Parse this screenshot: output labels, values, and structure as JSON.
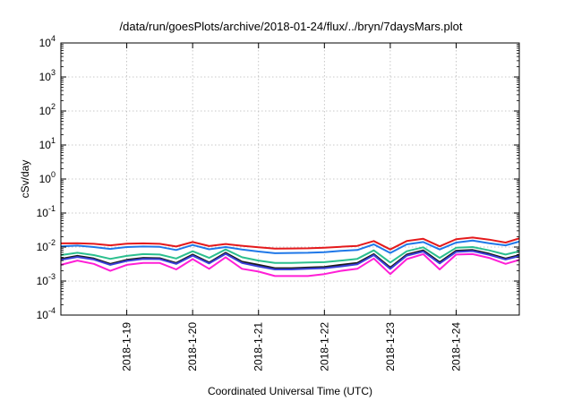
{
  "chart_data": {
    "type": "line",
    "title": "/data/run/goesPlots/archive/2018-01-24/flux/../bryn/7daysMars.plot",
    "xlabel": "Coordinated Universal Time (UTC)",
    "ylabel": "cSv/day",
    "x_range": [
      "2018-01-18T00:00",
      "2018-01-24T23:00"
    ],
    "x_ticks": [
      "2018-1-19",
      "2018-1-20",
      "2018-1-21",
      "2018-1-22",
      "2018-1-23",
      "2018-1-24"
    ],
    "y_scale": "log",
    "ylim": [
      0.0001,
      10000
    ],
    "y_ticks": [
      {
        "base": "10",
        "exp": "-4"
      },
      {
        "base": "10",
        "exp": "-3"
      },
      {
        "base": "10",
        "exp": "-2"
      },
      {
        "base": "10",
        "exp": "-1"
      },
      {
        "base": "10",
        "exp": "0"
      },
      {
        "base": "10",
        "exp": "1"
      },
      {
        "base": "10",
        "exp": "2"
      },
      {
        "base": "10",
        "exp": "3"
      },
      {
        "base": "10",
        "exp": "4"
      }
    ],
    "grid": true,
    "series": [
      {
        "color": "#e41a1c",
        "points": [
          [
            "2018-01-18T00:00",
            0.0128
          ],
          [
            "2018-01-18T06:00",
            0.013
          ],
          [
            "2018-01-18T12:00",
            0.0124
          ],
          [
            "2018-01-18T18:00",
            0.0112
          ],
          [
            "2018-01-19T00:00",
            0.0125
          ],
          [
            "2018-01-19T06:00",
            0.0128
          ],
          [
            "2018-01-19T12:00",
            0.0124
          ],
          [
            "2018-01-19T18:00",
            0.0104
          ],
          [
            "2018-01-20T00:00",
            0.014
          ],
          [
            "2018-01-20T06:00",
            0.0107
          ],
          [
            "2018-01-20T12:00",
            0.0123
          ],
          [
            "2018-01-20T18:00",
            0.0109
          ],
          [
            "2018-01-21T00:00",
            0.0098
          ],
          [
            "2018-01-21T06:00",
            0.009
          ],
          [
            "2018-01-21T12:00",
            0.0091
          ],
          [
            "2018-01-21T18:00",
            0.0092
          ],
          [
            "2018-01-22T00:00",
            0.0096
          ],
          [
            "2018-01-22T06:00",
            0.0102
          ],
          [
            "2018-01-22T12:00",
            0.0108
          ],
          [
            "2018-01-22T18:00",
            0.015
          ],
          [
            "2018-01-23T00:00",
            0.0085
          ],
          [
            "2018-01-23T06:00",
            0.015
          ],
          [
            "2018-01-23T12:00",
            0.0175
          ],
          [
            "2018-01-23T18:00",
            0.0105
          ],
          [
            "2018-01-24T00:00",
            0.017
          ],
          [
            "2018-01-24T06:00",
            0.019
          ],
          [
            "2018-01-24T12:00",
            0.0165
          ],
          [
            "2018-01-24T18:00",
            0.0135
          ],
          [
            "2018-01-24T23:00",
            0.018
          ]
        ]
      },
      {
        "color": "#1f78e8",
        "points": [
          [
            "2018-01-18T00:00",
            0.0105
          ],
          [
            "2018-01-18T06:00",
            0.011
          ],
          [
            "2018-01-18T12:00",
            0.01
          ],
          [
            "2018-01-18T18:00",
            0.0088
          ],
          [
            "2018-01-19T00:00",
            0.01
          ],
          [
            "2018-01-19T06:00",
            0.0104
          ],
          [
            "2018-01-19T12:00",
            0.0101
          ],
          [
            "2018-01-19T18:00",
            0.0082
          ],
          [
            "2018-01-20T00:00",
            0.0115
          ],
          [
            "2018-01-20T06:00",
            0.0086
          ],
          [
            "2018-01-20T12:00",
            0.01
          ],
          [
            "2018-01-20T18:00",
            0.0085
          ],
          [
            "2018-01-21T00:00",
            0.0074
          ],
          [
            "2018-01-21T06:00",
            0.0066
          ],
          [
            "2018-01-21T12:00",
            0.0067
          ],
          [
            "2018-01-21T18:00",
            0.0068
          ],
          [
            "2018-01-22T00:00",
            0.0071
          ],
          [
            "2018-01-22T06:00",
            0.0077
          ],
          [
            "2018-01-22T12:00",
            0.0082
          ],
          [
            "2018-01-22T18:00",
            0.012
          ],
          [
            "2018-01-23T00:00",
            0.0067
          ],
          [
            "2018-01-23T06:00",
            0.012
          ],
          [
            "2018-01-23T12:00",
            0.014
          ],
          [
            "2018-01-23T18:00",
            0.0085
          ],
          [
            "2018-01-24T00:00",
            0.0135
          ],
          [
            "2018-01-24T06:00",
            0.0155
          ],
          [
            "2018-01-24T12:00",
            0.013
          ],
          [
            "2018-01-24T18:00",
            0.0112
          ],
          [
            "2018-01-24T23:00",
            0.0145
          ]
        ]
      },
      {
        "color": "#2bbf8e",
        "points": [
          [
            "2018-01-18T00:00",
            0.0058
          ],
          [
            "2018-01-18T06:00",
            0.0068
          ],
          [
            "2018-01-18T12:00",
            0.0058
          ],
          [
            "2018-01-18T18:00",
            0.0045
          ],
          [
            "2018-01-19T00:00",
            0.0055
          ],
          [
            "2018-01-19T06:00",
            0.0062
          ],
          [
            "2018-01-19T12:00",
            0.006
          ],
          [
            "2018-01-19T18:00",
            0.0046
          ],
          [
            "2018-01-20T00:00",
            0.0075
          ],
          [
            "2018-01-20T06:00",
            0.0048
          ],
          [
            "2018-01-20T12:00",
            0.0085
          ],
          [
            "2018-01-20T18:00",
            0.005
          ],
          [
            "2018-01-21T00:00",
            0.004
          ],
          [
            "2018-01-21T06:00",
            0.0034
          ],
          [
            "2018-01-21T12:00",
            0.0034
          ],
          [
            "2018-01-21T18:00",
            0.0035
          ],
          [
            "2018-01-22T00:00",
            0.0036
          ],
          [
            "2018-01-22T06:00",
            0.004
          ],
          [
            "2018-01-22T12:00",
            0.0045
          ],
          [
            "2018-01-22T18:00",
            0.008
          ],
          [
            "2018-01-23T00:00",
            0.0035
          ],
          [
            "2018-01-23T06:00",
            0.0075
          ],
          [
            "2018-01-23T12:00",
            0.0098
          ],
          [
            "2018-01-23T18:00",
            0.0048
          ],
          [
            "2018-01-24T00:00",
            0.0095
          ],
          [
            "2018-01-24T06:00",
            0.01
          ],
          [
            "2018-01-24T12:00",
            0.008
          ],
          [
            "2018-01-24T18:00",
            0.006
          ],
          [
            "2018-01-24T23:00",
            0.0075
          ]
        ]
      },
      {
        "color": "#1a1a1a",
        "points": [
          [
            "2018-01-18T00:00",
            0.0045
          ],
          [
            "2018-01-18T06:00",
            0.0055
          ],
          [
            "2018-01-18T12:00",
            0.0046
          ],
          [
            "2018-01-18T18:00",
            0.0032
          ],
          [
            "2018-01-19T00:00",
            0.0042
          ],
          [
            "2018-01-19T06:00",
            0.0048
          ],
          [
            "2018-01-19T12:00",
            0.0047
          ],
          [
            "2018-01-19T18:00",
            0.0034
          ],
          [
            "2018-01-20T00:00",
            0.006
          ],
          [
            "2018-01-20T06:00",
            0.0035
          ],
          [
            "2018-01-20T12:00",
            0.0068
          ],
          [
            "2018-01-20T18:00",
            0.0037
          ],
          [
            "2018-01-21T00:00",
            0.003
          ],
          [
            "2018-01-21T06:00",
            0.0024
          ],
          [
            "2018-01-21T12:00",
            0.0024
          ],
          [
            "2018-01-21T18:00",
            0.0025
          ],
          [
            "2018-01-22T00:00",
            0.0026
          ],
          [
            "2018-01-22T06:00",
            0.003
          ],
          [
            "2018-01-22T12:00",
            0.0034
          ],
          [
            "2018-01-22T18:00",
            0.0062
          ],
          [
            "2018-01-23T00:00",
            0.0025
          ],
          [
            "2018-01-23T06:00",
            0.006
          ],
          [
            "2018-01-23T12:00",
            0.008
          ],
          [
            "2018-01-23T18:00",
            0.0036
          ],
          [
            "2018-01-24T00:00",
            0.0078
          ],
          [
            "2018-01-24T06:00",
            0.0082
          ],
          [
            "2018-01-24T12:00",
            0.0064
          ],
          [
            "2018-01-24T18:00",
            0.0046
          ],
          [
            "2018-01-24T23:00",
            0.0058
          ]
        ]
      },
      {
        "color": "#3b3fd8",
        "points": [
          [
            "2018-01-18T00:00",
            0.0042
          ],
          [
            "2018-01-18T06:00",
            0.0051
          ],
          [
            "2018-01-18T12:00",
            0.0043
          ],
          [
            "2018-01-18T18:00",
            0.003
          ],
          [
            "2018-01-19T00:00",
            0.0039
          ],
          [
            "2018-01-19T06:00",
            0.0045
          ],
          [
            "2018-01-19T12:00",
            0.0044
          ],
          [
            "2018-01-19T18:00",
            0.0032
          ],
          [
            "2018-01-20T00:00",
            0.0056
          ],
          [
            "2018-01-20T06:00",
            0.0033
          ],
          [
            "2018-01-20T12:00",
            0.0063
          ],
          [
            "2018-01-20T18:00",
            0.0034
          ],
          [
            "2018-01-21T00:00",
            0.0027
          ],
          [
            "2018-01-21T06:00",
            0.0022
          ],
          [
            "2018-01-21T12:00",
            0.0022
          ],
          [
            "2018-01-21T18:00",
            0.0023
          ],
          [
            "2018-01-22T00:00",
            0.0024
          ],
          [
            "2018-01-22T06:00",
            0.0027
          ],
          [
            "2018-01-22T12:00",
            0.0031
          ],
          [
            "2018-01-22T18:00",
            0.0058
          ],
          [
            "2018-01-23T00:00",
            0.0023
          ],
          [
            "2018-01-23T06:00",
            0.0056
          ],
          [
            "2018-01-23T12:00",
            0.0074
          ],
          [
            "2018-01-23T18:00",
            0.0033
          ],
          [
            "2018-01-24T00:00",
            0.0072
          ],
          [
            "2018-01-24T06:00",
            0.0076
          ],
          [
            "2018-01-24T12:00",
            0.0059
          ],
          [
            "2018-01-24T18:00",
            0.0043
          ],
          [
            "2018-01-24T23:00",
            0.0054
          ]
        ]
      },
      {
        "color": "#ff1fd6",
        "points": [
          [
            "2018-01-18T00:00",
            0.003
          ],
          [
            "2018-01-18T06:00",
            0.004
          ],
          [
            "2018-01-18T12:00",
            0.0032
          ],
          [
            "2018-01-18T18:00",
            0.002
          ],
          [
            "2018-01-19T00:00",
            0.003
          ],
          [
            "2018-01-19T06:00",
            0.0034
          ],
          [
            "2018-01-19T12:00",
            0.0034
          ],
          [
            "2018-01-19T18:00",
            0.0022
          ],
          [
            "2018-01-20T00:00",
            0.0044
          ],
          [
            "2018-01-20T06:00",
            0.0023
          ],
          [
            "2018-01-20T12:00",
            0.005
          ],
          [
            "2018-01-20T18:00",
            0.0023
          ],
          [
            "2018-01-21T00:00",
            0.0019
          ],
          [
            "2018-01-21T06:00",
            0.0014
          ],
          [
            "2018-01-21T12:00",
            0.0014
          ],
          [
            "2018-01-21T18:00",
            0.0014
          ],
          [
            "2018-01-22T00:00",
            0.0016
          ],
          [
            "2018-01-22T06:00",
            0.002
          ],
          [
            "2018-01-22T12:00",
            0.0023
          ],
          [
            "2018-01-22T18:00",
            0.0046
          ],
          [
            "2018-01-23T00:00",
            0.0016
          ],
          [
            "2018-01-23T06:00",
            0.0044
          ],
          [
            "2018-01-23T12:00",
            0.0062
          ],
          [
            "2018-01-23T18:00",
            0.0022
          ],
          [
            "2018-01-24T00:00",
            0.006
          ],
          [
            "2018-01-24T06:00",
            0.0062
          ],
          [
            "2018-01-24T12:00",
            0.0048
          ],
          [
            "2018-01-24T18:00",
            0.0032
          ],
          [
            "2018-01-24T23:00",
            0.0042
          ]
        ]
      }
    ]
  }
}
